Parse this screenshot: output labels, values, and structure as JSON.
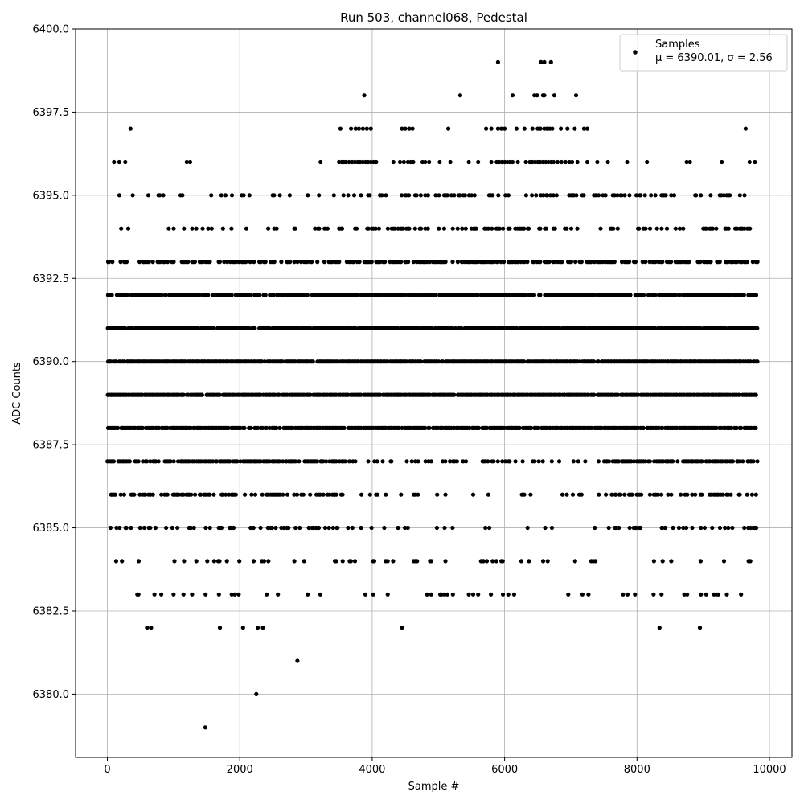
{
  "chart_data": {
    "type": "scatter",
    "title": "Run 503, channel068, Pedestal",
    "xlabel": "Sample #",
    "ylabel": "ADC Counts",
    "xlim": [
      -480,
      10340
    ],
    "ylim": [
      6378.1,
      6400.0
    ],
    "x_ticks": [
      0,
      2000,
      4000,
      6000,
      8000,
      10000
    ],
    "x_tick_labels": [
      "0",
      "2000",
      "4000",
      "6000",
      "8000",
      "10000"
    ],
    "y_ticks": [
      6380.0,
      6382.5,
      6385.0,
      6387.5,
      6390.0,
      6392.5,
      6395.0,
      6397.5,
      6400.0
    ],
    "y_tick_labels": [
      "6380.0",
      "6382.5",
      "6385.0",
      "6387.5",
      "6390.0",
      "6392.5",
      "6395.0",
      "6397.5",
      "6400.0"
    ],
    "grid": true,
    "legend": {
      "placement": "top-right",
      "label": "Samples",
      "stats": "μ = 6390.01, σ = 2.56"
    },
    "marker_color": "#000000",
    "series": [
      {
        "name": "Samples",
        "levels": [
          {
            "y": 6400,
            "x": []
          },
          {
            "y": 6399,
            "x": [
              5900,
              6550,
              6600,
              6700
            ]
          },
          {
            "y": 6398,
            "x": [
              3880,
              5330,
              6120,
              6450,
              6490,
              6580,
              6600,
              6750,
              7080
            ]
          },
          {
            "y": 6397,
            "x": [
              350,
              3520,
              3680,
              3750,
              3800,
              3860,
              3920,
              3980,
              4450,
              4500,
              4560,
              4610,
              5150,
              5720,
              5800,
              5900,
              5950,
              6000,
              6180,
              6300,
              6420,
              6500,
              6540,
              6600,
              6640,
              6680,
              6720,
              6850,
              6950,
              7060,
              7200,
              7250,
              9640
            ]
          },
          {
            "y": 6396,
            "x": [
              100,
              180,
              270,
              1200,
              1250,
              3220,
              3500,
              3540,
              3570,
              3600,
              3650,
              3700,
              3740,
              3780,
              3820,
              3860,
              3900,
              3940,
              3980,
              4020,
              4060,
              4320,
              4420,
              4480,
              4540,
              4580,
              4620,
              4760,
              4800,
              4860,
              5020,
              5180,
              5460,
              5600,
              5800,
              5880,
              5920,
              5960,
              6000,
              6040,
              6080,
              6120,
              6200,
              6320,
              6380,
              6420,
              6460,
              6500,
              6540,
              6580,
              6620,
              6660,
              6700,
              6740,
              6800,
              6860,
              6920,
              6980,
              7020,
              7100,
              7250,
              7400,
              7560,
              7850,
              8150,
              8750,
              8800,
              9280,
              9700,
              9780
            ]
          }
        ],
        "note": "dense bands at 6384-6395 rendered by script"
      }
    ]
  }
}
